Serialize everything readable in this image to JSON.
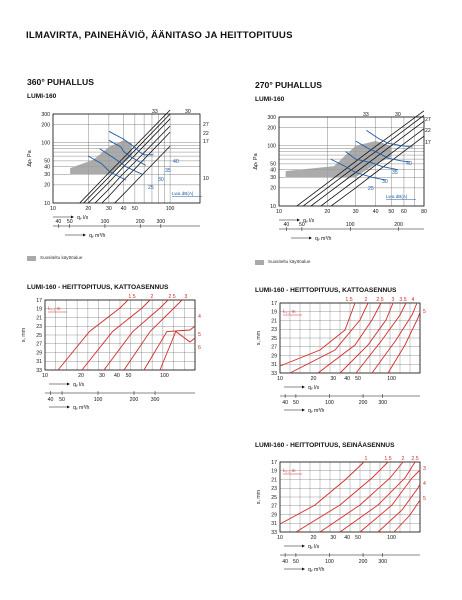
{
  "title": "ILMAVIRTA, PAINEHÄVIÖ, ÄÄNITASO JA HEITTOPITUUS",
  "legend_label": "Suositeltu käyttöalue",
  "panels": {
    "p360": {
      "heading": "360° PUHALLUS",
      "subheading": "LUMI-160"
    },
    "p270": {
      "heading": "270° PUHALLUS",
      "subheading": "LUMI-160"
    },
    "kk": {
      "heading": "LUMI-160 - HEITTOPITUUS, KATTOASENNUS"
    },
    "k270": {
      "heading": "LUMI-160 - HEITTOPITUUS, KATTOASENNUS"
    },
    "wall": {
      "heading": "LUMI-160 - HEITTOPITUUS, SEINÄASENNUS"
    }
  },
  "chart_data": [
    {
      "id": "pressure-360",
      "type": "line",
      "ylabel": "Δpₜ Pa",
      "x1label": "qᵥ l/s",
      "x2label": "qᵥ m³/h",
      "y_ticks": [
        "10",
        "20",
        "30",
        "40",
        "50",
        "100",
        "200",
        "300"
      ],
      "x_ticks": [
        "10",
        "20",
        "30",
        "40",
        "50",
        "100"
      ],
      "x2_ticks": [
        "40",
        "50",
        "100",
        "200",
        "300"
      ],
      "setting_labels": [
        "33",
        "30",
        "27",
        "22",
        "17",
        "10"
      ],
      "sound_labels": [
        "40",
        "35",
        "30",
        "25"
      ],
      "sound_caption": "Lwa dB(A)",
      "series": [
        {
          "values": [
            [
              10,
              3.5
            ],
            [
              20,
              14
            ],
            [
              30,
              32
            ],
            [
              40,
              56
            ],
            [
              50,
              88
            ],
            [
              100,
              350
            ]
          ]
        },
        {
          "values": [
            [
              10,
              3
            ],
            [
              20,
              12
            ],
            [
              30,
              27
            ],
            [
              40,
              48
            ],
            [
              50,
              75
            ],
            [
              100,
              300
            ]
          ]
        },
        {
          "values": [
            [
              10,
              2.5
            ],
            [
              20,
              10
            ],
            [
              30,
              22
            ],
            [
              40,
              40
            ],
            [
              50,
              62
            ],
            [
              100,
              250
            ]
          ]
        },
        {
          "values": [
            [
              10,
              1.9
            ],
            [
              20,
              7.7
            ],
            [
              30,
              17
            ],
            [
              40,
              31
            ],
            [
              50,
              48
            ],
            [
              100,
              190
            ]
          ]
        },
        {
          "values": [
            [
              10,
              1.5
            ],
            [
              20,
              6
            ],
            [
              30,
              13
            ],
            [
              40,
              24
            ],
            [
              50,
              37
            ],
            [
              100,
              150
            ]
          ]
        },
        {
          "values": [
            [
              10,
              0.9
            ],
            [
              20,
              3.6
            ],
            [
              30,
              8
            ],
            [
              40,
              14
            ],
            [
              50,
              22
            ],
            [
              100,
              88
            ]
          ]
        }
      ]
    },
    {
      "id": "pressure-270",
      "type": "line",
      "ylabel": "Δpₜ Pa",
      "x1label": "qᵥ l/s",
      "x2label": "qᵥ m³/h",
      "y_ticks": [
        "10",
        "20",
        "30",
        "40",
        "50",
        "100",
        "200",
        "300"
      ],
      "x_ticks": [
        "10",
        "20",
        "30",
        "40",
        "50",
        "60",
        "80"
      ],
      "x2_ticks": [
        "40",
        "50",
        "100",
        "200"
      ],
      "setting_labels": [
        "33",
        "30",
        "27",
        "22",
        "17"
      ],
      "sound_labels": [
        "40",
        "35",
        "30",
        "25"
      ],
      "sound_caption": "Lwa dB(A)",
      "series": [
        {
          "values": [
            [
              10,
              6
            ],
            [
              20,
              24
            ],
            [
              30,
              55
            ],
            [
              40,
              98
            ],
            [
              50,
              150
            ],
            [
              80,
              380
            ]
          ]
        },
        {
          "values": [
            [
              10,
              5
            ],
            [
              20,
              20
            ],
            [
              30,
              45
            ],
            [
              40,
              80
            ],
            [
              50,
              125
            ],
            [
              80,
              320
            ]
          ]
        },
        {
          "values": [
            [
              10,
              4
            ],
            [
              20,
              16
            ],
            [
              30,
              36
            ],
            [
              40,
              64
            ],
            [
              50,
              100
            ],
            [
              80,
              256
            ]
          ]
        },
        {
          "values": [
            [
              10,
              3
            ],
            [
              20,
              12
            ],
            [
              30,
              27
            ],
            [
              40,
              48
            ],
            [
              50,
              75
            ],
            [
              80,
              192
            ]
          ]
        },
        {
          "values": [
            [
              10,
              2.2
            ],
            [
              20,
              9
            ],
            [
              30,
              20
            ],
            [
              40,
              36
            ],
            [
              50,
              56
            ],
            [
              80,
              144
            ]
          ]
        }
      ]
    },
    {
      "id": "throw-ceiling-360",
      "type": "line",
      "ylabel": "s, mm",
      "x1label": "qᵥ l/s",
      "x2label": "qᵥ m³/h",
      "y_ticks": [
        "17",
        "19",
        "21",
        "23",
        "25",
        "27",
        "29",
        "31",
        "33"
      ],
      "x_ticks": [
        "10",
        "20",
        "30",
        "40",
        "50",
        "100"
      ],
      "x2_ticks": [
        "40",
        "50",
        "100",
        "200",
        "300"
      ],
      "curve_labels_top": [
        "1.5",
        "2",
        "2.5",
        "3"
      ],
      "curve_labels_right": [
        "4",
        "5",
        "6"
      ],
      "lt_caption": "lₜ₀.₂ m"
    },
    {
      "id": "throw-ceiling-270",
      "type": "line",
      "ylabel": "s, mm",
      "x1label": "qᵥ l/s",
      "x2label": "qᵥ m³/h",
      "y_ticks": [
        "17",
        "19",
        "21",
        "23",
        "25",
        "27",
        "29",
        "31",
        "33"
      ],
      "x_ticks": [
        "10",
        "20",
        "30",
        "40",
        "50",
        "100"
      ],
      "x2_ticks": [
        "40",
        "50",
        "100",
        "200",
        "300"
      ],
      "curve_labels_top": [
        "1.5",
        "2",
        "2.5",
        "3",
        "3.5",
        "4"
      ],
      "curve_labels_right": [
        "5"
      ],
      "lt_caption": "lₜ₀.₂ m"
    },
    {
      "id": "throw-wall",
      "type": "line",
      "ylabel": "s, mm",
      "x1label": "qᵥ l/s",
      "x2label": "qᵥ m³/h",
      "y_ticks": [
        "17",
        "19",
        "21",
        "23",
        "25",
        "27",
        "29",
        "31",
        "33"
      ],
      "x_ticks": [
        "10",
        "20",
        "30",
        "40",
        "50",
        "100"
      ],
      "x2_ticks": [
        "40",
        "50",
        "100",
        "200",
        "300"
      ],
      "curve_labels_top": [
        "1",
        "1.5",
        "2",
        "2.5"
      ],
      "curve_labels_right": [
        "3",
        "4",
        "5"
      ],
      "lt_caption": "lₜ₀.₂ m"
    }
  ]
}
